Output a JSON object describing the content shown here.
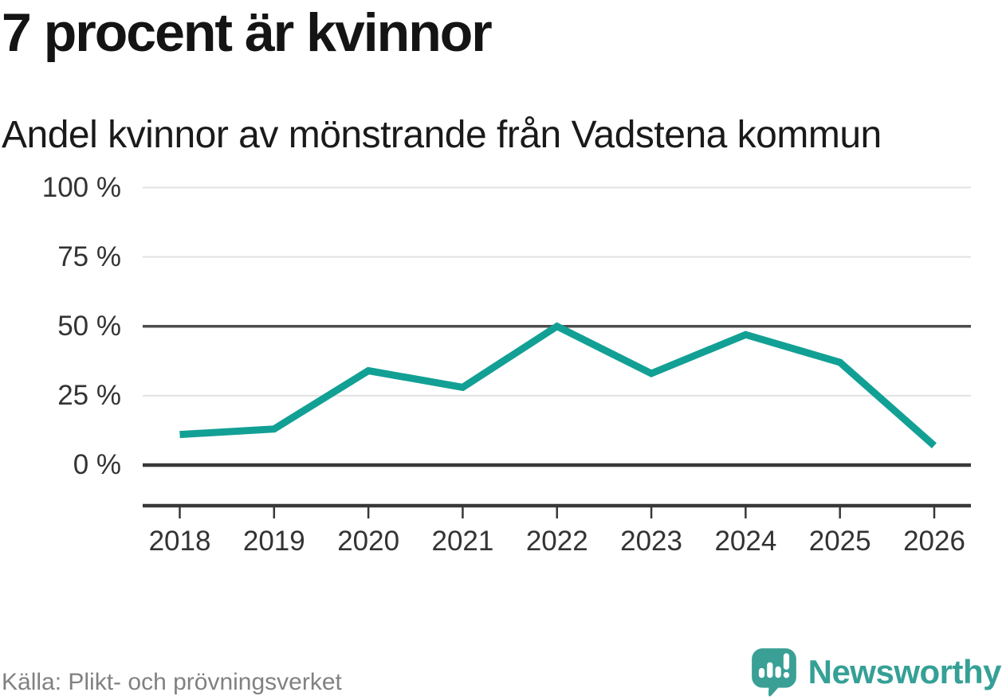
{
  "header": {
    "title": "7 procent är kvinnor",
    "subtitle": "Andel kvinnor av mönstrande från Vadstena kommun"
  },
  "chart_data": {
    "type": "line",
    "title": "7 procent är kvinnor",
    "subtitle": "Andel kvinnor av mönstrande från Vadstena kommun",
    "categories": [
      "2018",
      "2019",
      "2020",
      "2021",
      "2022",
      "2023",
      "2024",
      "2025",
      "2026"
    ],
    "values": [
      11,
      13,
      34,
      28,
      50,
      33,
      47,
      37,
      7
    ],
    "unit": "%",
    "ylim": [
      0,
      100
    ],
    "yticks": [
      0,
      25,
      50,
      75,
      100
    ],
    "ytick_suffix": " %",
    "xlabel": "",
    "ylabel": "",
    "grid": "horizontal",
    "highlighted_gridlines": [
      0,
      50
    ],
    "legend": "none",
    "line_color": "#12a095"
  },
  "footer": {
    "source": "Källa: Plikt- och prövningsverket",
    "brand": "Newsworthy"
  },
  "colors": {
    "line": "#12a095",
    "grid_light": "#e2e2e2",
    "grid_mid_dark": "#4d4d4d",
    "grid_zero": "#383838",
    "axis": "#383838",
    "tick_text": "#333333",
    "title_text": "#141414",
    "source_text": "#818181",
    "brand_teal": "#3aa096",
    "logo_glyph": "#ffffff"
  },
  "icons": {
    "brand_logo": "newsworthy-speech-bubble-bar-chart-icon"
  }
}
